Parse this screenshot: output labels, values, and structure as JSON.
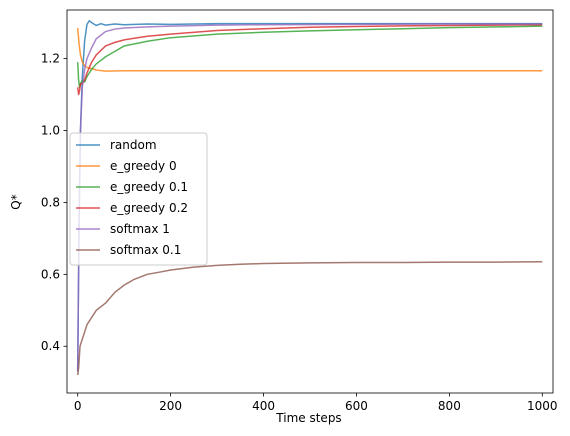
{
  "chart_data": {
    "type": "line",
    "xlabel": "Time steps",
    "ylabel": "Q*",
    "xlim": [
      -23,
      1023
    ],
    "ylim": [
      0.27,
      1.335
    ],
    "xticks": [
      0,
      200,
      400,
      600,
      800,
      1000
    ],
    "yticks": [
      0.4,
      0.6,
      0.8,
      1.0,
      1.2
    ],
    "xtick_labels": [
      "0",
      "200",
      "400",
      "600",
      "800",
      "1000"
    ],
    "ytick_labels": [
      "0.4",
      "0.6",
      "0.8",
      "1.0",
      "1.2"
    ],
    "grid": false,
    "legend_position": "center-left",
    "series": [
      {
        "name": "random",
        "color": "#1f77b4",
        "x": [
          0,
          3,
          6,
          10,
          15,
          20,
          25,
          30,
          40,
          50,
          60,
          80,
          100,
          150,
          200,
          300,
          500,
          700,
          1000
        ],
        "y": [
          0.33,
          0.75,
          1.0,
          1.15,
          1.25,
          1.295,
          1.305,
          1.3,
          1.292,
          1.297,
          1.293,
          1.296,
          1.294,
          1.296,
          1.295,
          1.297,
          1.297,
          1.297,
          1.297
        ]
      },
      {
        "name": "e_greedy 0",
        "color": "#ff7f0e",
        "x": [
          0,
          3,
          6,
          10,
          15,
          20,
          30,
          40,
          60,
          100,
          200,
          400,
          600,
          800,
          1000
        ],
        "y": [
          1.285,
          1.24,
          1.21,
          1.19,
          1.18,
          1.175,
          1.172,
          1.168,
          1.165,
          1.166,
          1.166,
          1.166,
          1.166,
          1.166,
          1.166
        ]
      },
      {
        "name": "e_greedy 0.1",
        "color": "#2ca02c",
        "x": [
          0,
          2,
          4,
          6,
          10,
          15,
          20,
          30,
          40,
          60,
          80,
          100,
          150,
          200,
          300,
          400,
          500,
          600,
          700,
          800,
          900,
          1000
        ],
        "y": [
          1.19,
          1.14,
          1.12,
          1.13,
          1.14,
          1.135,
          1.15,
          1.17,
          1.185,
          1.205,
          1.22,
          1.235,
          1.248,
          1.258,
          1.268,
          1.273,
          1.277,
          1.28,
          1.283,
          1.286,
          1.288,
          1.29
        ]
      },
      {
        "name": "e_greedy 0.2",
        "color": "#d62728",
        "x": [
          0,
          2,
          4,
          6,
          10,
          15,
          20,
          30,
          40,
          60,
          80,
          100,
          150,
          200,
          300,
          400,
          500,
          600,
          700,
          800,
          900,
          1000
        ],
        "y": [
          1.12,
          1.1,
          1.11,
          1.13,
          1.13,
          1.14,
          1.16,
          1.19,
          1.21,
          1.235,
          1.245,
          1.252,
          1.262,
          1.268,
          1.278,
          1.283,
          1.287,
          1.289,
          1.291,
          1.292,
          1.293,
          1.294
        ]
      },
      {
        "name": "softmax 1",
        "color": "#9467bd",
        "x": [
          0,
          3,
          6,
          10,
          15,
          20,
          30,
          40,
          60,
          80,
          100,
          150,
          200,
          300,
          400,
          600,
          800,
          1000
        ],
        "y": [
          0.33,
          0.75,
          1.0,
          1.12,
          1.17,
          1.2,
          1.23,
          1.255,
          1.275,
          1.282,
          1.285,
          1.288,
          1.29,
          1.293,
          1.294,
          1.295,
          1.296,
          1.296
        ]
      },
      {
        "name": "softmax 0.1",
        "color": "#8c564b",
        "x": [
          0,
          2,
          5,
          10,
          15,
          20,
          30,
          40,
          50,
          60,
          80,
          100,
          120,
          150,
          180,
          200,
          250,
          300,
          350,
          400,
          500,
          600,
          700,
          800,
          900,
          1000
        ],
        "y": [
          0.32,
          0.34,
          0.4,
          0.42,
          0.44,
          0.46,
          0.48,
          0.5,
          0.51,
          0.52,
          0.55,
          0.57,
          0.585,
          0.6,
          0.607,
          0.612,
          0.62,
          0.625,
          0.628,
          0.63,
          0.632,
          0.633,
          0.633,
          0.634,
          0.634,
          0.635
        ]
      }
    ]
  }
}
